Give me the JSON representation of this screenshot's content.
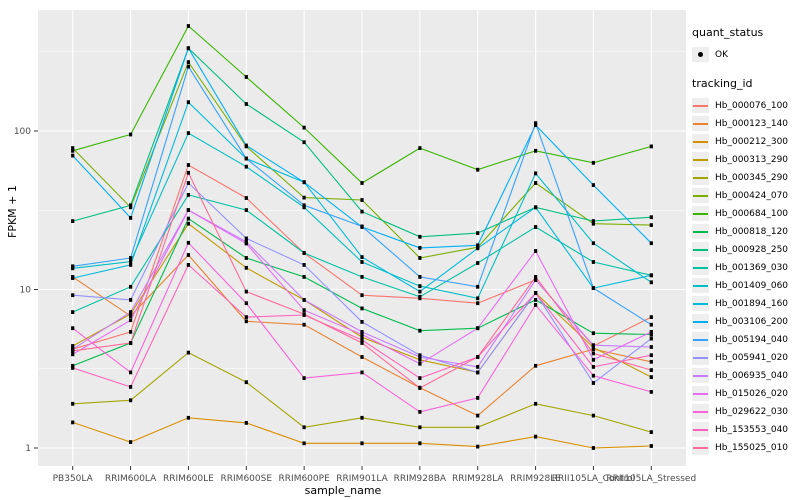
{
  "figure": {
    "panel_bg": "#EBEBEB",
    "grid_color": "#FFFFFF",
    "tick_label_color": "#4D4D4D",
    "point_color": "#000000"
  },
  "axes": {
    "x_title": "sample_name",
    "y_title": "FPKM + 1",
    "y_tick_labels": [
      "1",
      "10",
      "100"
    ]
  },
  "legend": {
    "quant_status": {
      "title": "quant_status",
      "items": [
        {
          "label": "OK",
          "marker": "point"
        }
      ]
    },
    "tracking_id": {
      "title": "tracking_id",
      "items": [
        {
          "label": "Hb_000076_100",
          "color": "#F8766D"
        },
        {
          "label": "Hb_000123_140",
          "color": "#EA8331"
        },
        {
          "label": "Hb_000212_300",
          "color": "#D89000"
        },
        {
          "label": "Hb_000313_290",
          "color": "#C09B00"
        },
        {
          "label": "Hb_000345_290",
          "color": "#A3A500"
        },
        {
          "label": "Hb_000424_070",
          "color": "#7CAE00"
        },
        {
          "label": "Hb_000684_100",
          "color": "#39B600"
        },
        {
          "label": "Hb_000818_120",
          "color": "#00BB4E"
        },
        {
          "label": "Hb_000928_250",
          "color": "#00BF7D"
        },
        {
          "label": "Hb_001369_030",
          "color": "#00C1A3"
        },
        {
          "label": "Hb_001409_060",
          "color": "#00BFC4"
        },
        {
          "label": "Hb_001894_160",
          "color": "#00BBDA"
        },
        {
          "label": "Hb_003106_200",
          "color": "#00B0F6"
        },
        {
          "label": "Hb_005194_040",
          "color": "#35A2FF"
        },
        {
          "label": "Hb_005941_020",
          "color": "#9590FF"
        },
        {
          "label": "Hb_006935_040",
          "color": "#C77CFF"
        },
        {
          "label": "Hb_015026_020",
          "color": "#E76BF3"
        },
        {
          "label": "Hb_029622_030",
          "color": "#FA62DB"
        },
        {
          "label": "Hb_153553_040",
          "color": "#FF62BC"
        },
        {
          "label": "Hb_155025_010",
          "color": "#FF6A98"
        }
      ]
    }
  },
  "chart_data": {
    "type": "line",
    "title": "",
    "xlabel": "sample_name",
    "ylabel": "FPKM + 1",
    "yscale": "log10",
    "ylim": [
      1,
      520
    ],
    "y_major_ticks": [
      1,
      10,
      100
    ],
    "y_minor_ticks": [
      3.162,
      31.62,
      316.2
    ],
    "grid": true,
    "legend_position": "right",
    "point_marker": "black square (quant_status OK)",
    "categories": [
      "PB350LA",
      "RRIM600LA",
      "RRIM600LE",
      "RRIM600SE",
      "RRIM600PE",
      "RRIM901LA",
      "RRIM928BA",
      "RRIM928LA",
      "RRIM928LE",
      "RRII105LA_Control",
      "RRII105LA_Stressed"
    ],
    "series": [
      {
        "name": "Hb_000076_100",
        "color": "#F8766D",
        "values": [
          4.2,
          5.4,
          61,
          37.8,
          17,
          9.2,
          8.8,
          8.2,
          11.5,
          4.4,
          6.7
        ]
      },
      {
        "name": "Hb_000123_140",
        "color": "#EA8331",
        "values": [
          12,
          6.8,
          16.5,
          6.3,
          6.0,
          3.75,
          2.4,
          1.6,
          3.3,
          4.2,
          3.5
        ]
      },
      {
        "name": "Hb_000212_300",
        "color": "#D89000",
        "values": [
          1.45,
          1.09,
          1.55,
          1.44,
          1.07,
          1.07,
          1.07,
          1.02,
          1.18,
          1.0,
          1.03
        ]
      },
      {
        "name": "Hb_000313_290",
        "color": "#C09B00",
        "values": [
          4.4,
          7.0,
          26,
          13.7,
          8.6,
          5.0,
          3.6,
          3.0,
          9.5,
          4.3,
          2.8
        ]
      },
      {
        "name": "Hb_000345_290",
        "color": "#A3A500",
        "values": [
          1.9,
          2.0,
          4.0,
          2.6,
          1.35,
          1.55,
          1.35,
          1.35,
          1.9,
          1.6,
          1.26
        ]
      },
      {
        "name": "Hb_000424_070",
        "color": "#7CAE00",
        "values": [
          78,
          33,
          272,
          80,
          38,
          36.7,
          15.8,
          18.5,
          47,
          26,
          25.5
        ]
      },
      {
        "name": "Hb_000684_100",
        "color": "#39B600",
        "values": [
          75,
          95,
          460,
          219,
          105,
          47,
          78,
          57,
          75,
          63,
          80
        ]
      },
      {
        "name": "Hb_000818_120",
        "color": "#00BB4E",
        "values": [
          3.3,
          4.6,
          28,
          15.8,
          12,
          7.6,
          5.5,
          5.7,
          8.6,
          5.3,
          5.2
        ]
      },
      {
        "name": "Hb_000928_250",
        "color": "#00BF7D",
        "values": [
          27,
          34,
          333,
          148,
          85,
          31,
          21.5,
          22.7,
          33,
          27,
          28.6
        ]
      },
      {
        "name": "Hb_001369_030",
        "color": "#00C1A3",
        "values": [
          7.2,
          10.4,
          39.5,
          31.7,
          17,
          12,
          9.0,
          14.7,
          24.8,
          14.9,
          12.3
        ]
      },
      {
        "name": "Hb_001409_060",
        "color": "#00BFC4",
        "values": [
          13.6,
          15,
          97,
          59.5,
          33,
          14.9,
          10.5,
          8.8,
          54,
          19.6,
          11.1
        ]
      },
      {
        "name": "Hb_001894_160",
        "color": "#00BBDA",
        "values": [
          11.8,
          14.3,
          152,
          67,
          47.5,
          16,
          9.7,
          18.2,
          33,
          10.2,
          12.3
        ]
      },
      {
        "name": "Hb_003106_200",
        "color": "#00B0F6",
        "values": [
          70,
          28.3,
          333,
          81,
          47.5,
          24.8,
          18.3,
          19,
          109,
          45.6,
          19.6
        ]
      },
      {
        "name": "Hb_005194_040",
        "color": "#35A2FF",
        "values": [
          14,
          15.8,
          255,
          67,
          34,
          25,
          12,
          10.4,
          112,
          10.2,
          6.0
        ]
      },
      {
        "name": "Hb_005941_020",
        "color": "#9590FF",
        "values": [
          9.2,
          8.6,
          47,
          21,
          14.3,
          6.25,
          3.85,
          3.0,
          9.5,
          2.57,
          4.9
        ]
      },
      {
        "name": "Hb_006935_040",
        "color": "#C77CFF",
        "values": [
          4.2,
          7.2,
          31.7,
          20,
          8.6,
          5.4,
          3.75,
          3.25,
          11.5,
          4.45,
          4.34
        ]
      },
      {
        "name": "Hb_015026_020",
        "color": "#E76BF3",
        "values": [
          3.9,
          6.4,
          31.7,
          19.5,
          7.4,
          5.2,
          3.4,
          5.7,
          17.5,
          3.6,
          5.4
        ]
      },
      {
        "name": "Hb_029622_030",
        "color": "#FA62DB",
        "values": [
          5.7,
          3.0,
          19.7,
          8.2,
          2.76,
          3.0,
          1.69,
          2.07,
          8.0,
          2.86,
          2.26
        ]
      },
      {
        "name": "Hb_153553_040",
        "color": "#FF62BC",
        "values": [
          3.2,
          2.43,
          14.3,
          6.7,
          6.9,
          4.8,
          2.76,
          3.75,
          9.5,
          3.25,
          3.85
        ]
      },
      {
        "name": "Hb_155025_010",
        "color": "#FF6A98",
        "values": [
          4.1,
          4.6,
          54.5,
          9.7,
          7.0,
          4.6,
          2.39,
          3.75,
          12,
          3.95,
          3.1
        ]
      }
    ]
  }
}
